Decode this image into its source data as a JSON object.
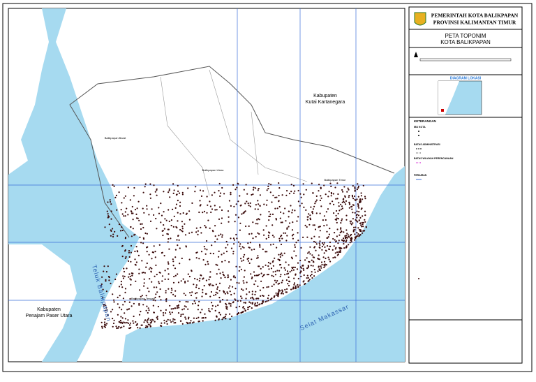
{
  "header": {
    "line1": "PEMERINTAH KOTA BALIKPAPAN",
    "line2": "PROVINSI KALIMANTAN TIMUR"
  },
  "map_title": {
    "line1": "PETA TOPONIM",
    "line2": "KOTA BALIKPAPAN"
  },
  "location_diagram": {
    "title": "DIAGRAM LOKASI"
  },
  "legend": {
    "title": "KETERANGAN",
    "sections": [
      "IBU KOTA",
      "BATAS ADMINISTRASI",
      "BATAS WILAYAH PERENCANAAN",
      "PERAIRAN"
    ]
  },
  "labels": {
    "kutai": [
      "Kabupaten",
      "Kutai Kartanegara"
    ],
    "penajam": [
      "Kabupaten",
      "Penajam Paser Utara"
    ],
    "teluk": "Teluk Balikpapan",
    "selat": "Selat Makassar",
    "districts": [
      "Balikpapan Barat",
      "Balikpapan Utara",
      "Balikpapan Timur",
      "Balikpapan Tengah"
    ]
  }
}
